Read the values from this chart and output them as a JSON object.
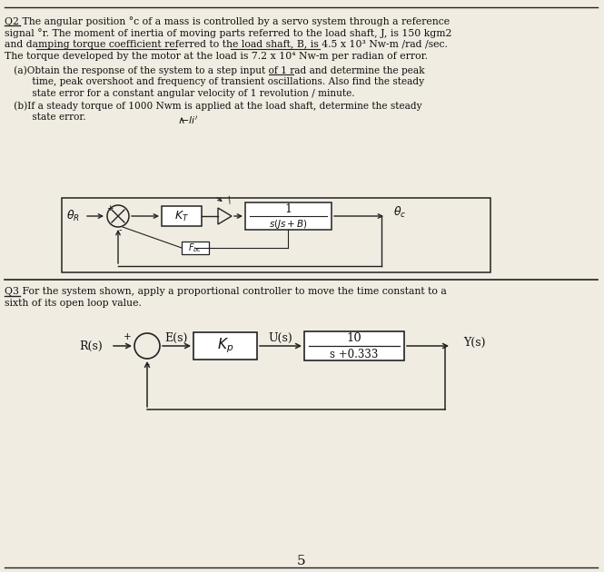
{
  "bg_color": "#f0ece2",
  "text_color": "#111111",
  "line_color": "#222222",
  "q2_line1": "Q2 The angular position °c of a mass is controlled by a servo system through a reference",
  "q2_line2": "signal °r. The moment of inertia of moving parts referred to the load shaft, J, is 150 kgm2",
  "q2_line3": "and damping torque coefficient referred to the load shaft, B, is 4.5 x 10³ Nw-m /rad /sec.",
  "q2_line4": "The torque developed by the motor at the load is 7.2 x 10⁴ Nw-m per radian of error.",
  "qa_line1": "   (a)Obtain the response of the system to a step input of 1 rad and determine the peak",
  "qa_line2": "         time, peak overshoot and frequency of transient oscillations. Also find the steady",
  "qa_line3": "         state error for a constant angular velocity of 1 revolution / minute.",
  "qb_line1": "   (b)If a steady torque of 1000 Nwm is applied at the load shaft, determine the steady",
  "qb_line2": "         state error.",
  "q3_line1": "Q3 For the system shown, apply a proportional controller to move the time constant to a",
  "q3_line2": "sixth of its open loop value.",
  "page_num": "5"
}
